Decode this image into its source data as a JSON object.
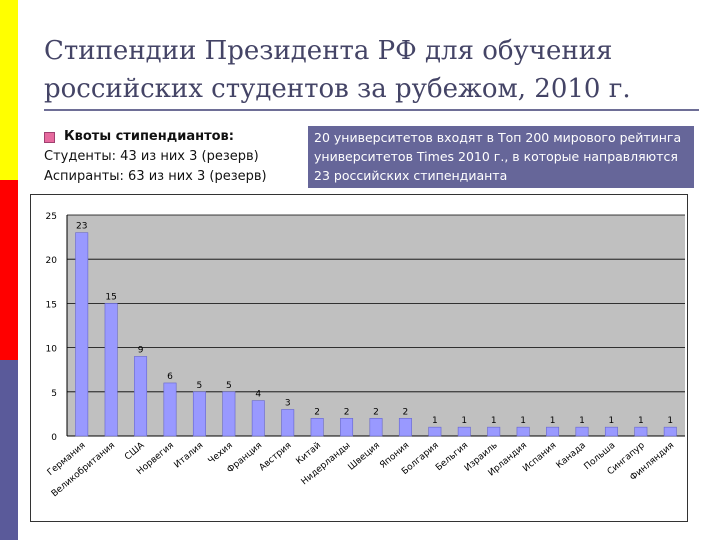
{
  "slide": {
    "title_line1": "Стипендии Президента РФ для обучения",
    "title_line2": "российских студентов за рубежом, 2010 г.",
    "quota_header": "Квоты стипендиантов:",
    "quota_students": "Студенты: 43 из них 3 (резерв)",
    "quota_postgrads": "Аспиранты: 63 из них 3 (резерв)",
    "info_text": "20 университетов входят в Топ 200 мирового рейтинга университетов Times 2010 г., в которые направляются 23 российских стипендианта"
  },
  "colors": {
    "bar_fill": "#9999ff",
    "bar_edge": "#6666cc",
    "plot_bg": "#c0c0c0",
    "info_bg": "#666699",
    "accent_yellow": "#ffff00",
    "accent_red": "#ff0000",
    "accent_blue": "#5a5a9a"
  },
  "chart_data": {
    "type": "bar",
    "categories": [
      "Германия",
      "Великобритания",
      "США",
      "Норвегия",
      "Италия",
      "Чехия",
      "Франция",
      "Австрия",
      "Китай",
      "Нидерланды",
      "Швеция",
      "Япония",
      "Болгария",
      "Бельгия",
      "Израиль",
      "Ирландия",
      "Испания",
      "Канада",
      "Польша",
      "Сингапур",
      "Финляндия"
    ],
    "values": [
      23,
      15,
      9,
      6,
      5,
      5,
      4,
      3,
      2,
      2,
      2,
      2,
      1,
      1,
      1,
      1,
      1,
      1,
      1,
      1,
      1
    ],
    "ylim": [
      0,
      25
    ],
    "yticks": [
      0,
      5,
      10,
      15,
      20,
      25
    ],
    "grid": "horizontal",
    "legend": "none"
  }
}
